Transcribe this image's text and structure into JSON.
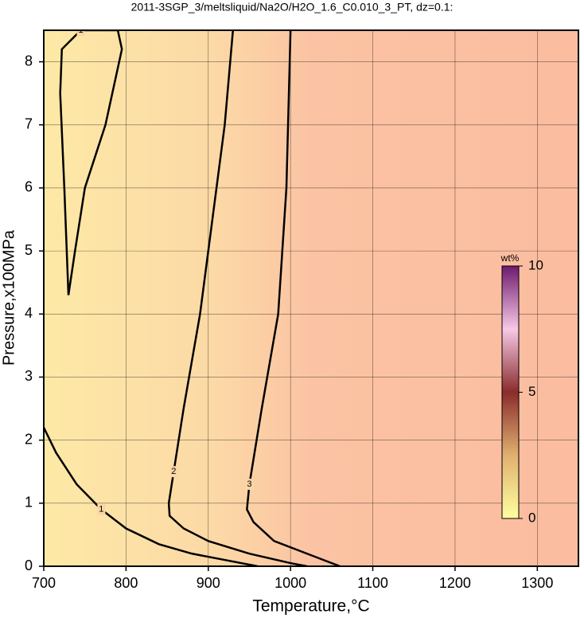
{
  "chart_data": {
    "type": "contour",
    "title": "2011-3SGP_3/meltsliquid/Na2O/H2O_1.6_C0.010_3_PT, dz=0.1:",
    "xlabel": "Temperature,°C",
    "ylabel": "Pressure,x100MPa",
    "xlim": [
      700,
      1350
    ],
    "ylim": [
      0,
      8.5
    ],
    "xticks": [
      700,
      800,
      900,
      1000,
      1100,
      1200,
      1300
    ],
    "yticks": [
      0,
      1,
      2,
      3,
      4,
      5,
      6,
      7,
      8
    ],
    "grid": true,
    "contours": [
      {
        "level": 1,
        "x": [
          730,
          725,
          720,
          722,
          745,
          790,
          795,
          775,
          750,
          738,
          730
        ],
        "y": [
          4.3,
          6,
          7.5,
          8.2,
          8.5,
          8.5,
          8.2,
          7,
          6,
          5,
          4.3
        ]
      },
      {
        "level": 1,
        "x": [
          700,
          715,
          740,
          770,
          800,
          840,
          880,
          920,
          960
        ],
        "y": [
          2.2,
          1.8,
          1.3,
          0.9,
          0.6,
          0.35,
          0.2,
          0.1,
          0
        ]
      },
      {
        "level": 2,
        "x": [
          930,
          920,
          905,
          890,
          870,
          858,
          852,
          853,
          870,
          900,
          950,
          1000,
          1020
        ],
        "y": [
          8.5,
          7,
          5.5,
          4,
          2.5,
          1.5,
          1.0,
          0.8,
          0.6,
          0.4,
          0.2,
          0.05,
          0
        ]
      },
      {
        "level": 3,
        "x": [
          1000,
          995,
          985,
          965,
          950,
          947,
          955,
          980,
          1030,
          1060
        ],
        "y": [
          8.5,
          6,
          4,
          2.5,
          1.3,
          0.9,
          0.7,
          0.4,
          0.15,
          0
        ]
      }
    ],
    "colorbar": {
      "label": "wt%",
      "lim": [
        0,
        10
      ],
      "ticks": [
        0,
        5,
        10
      ]
    }
  }
}
